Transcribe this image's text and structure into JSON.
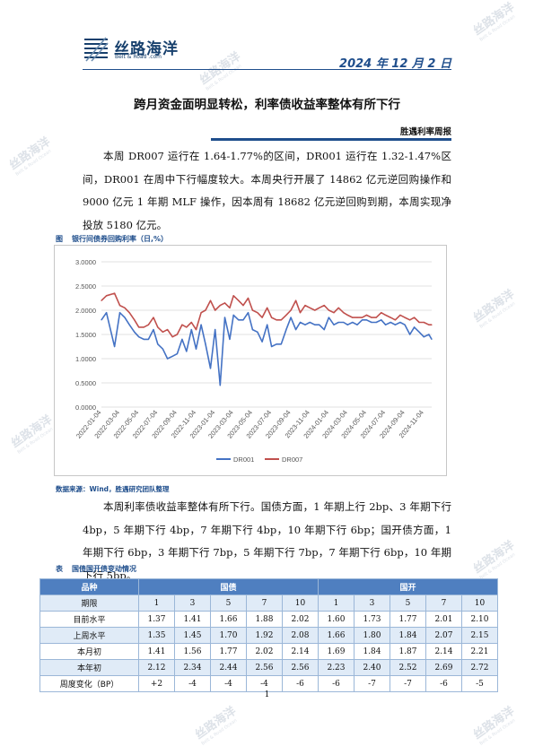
{
  "header": {
    "brand_cn": "丝路海洋",
    "brand_en": "Belt & Road .com",
    "date": "2024 年 12 月 2 日"
  },
  "title": "跨月资金面明显转松，利率债收益率整体有所下行",
  "report_tag": "胜遇利率周报",
  "paragraphs": {
    "p1": "本周 DR007 运行在 1.64-1.77%的区间，DR001 运行在 1.32-1.47%区间，DR001 在周中下行幅度较大。本周央行开展了 14862 亿元逆回购操作和 9000 亿元 1 年期 MLF 操作，因本周有 18682 亿元逆回购到期，本周实现净投放 5180 亿元。",
    "p2": "本周利率债收益率整体有所下行。国债方面，1 年期上行 2bp、3 年期下行 4bp，5 年期下行 4bp，7 年期下行 4bp，10 年期下行 6bp；国开债方面，1 年期下行 6bp，3 年期下行 7bp，5 年期下行 7bp，7 年期下行 6bp，10 年期下行 5bp。"
  },
  "figure": {
    "label": "图",
    "caption": "银行间债券回购利率（日,%）",
    "source": "数据来源：Wind，胜遇研究团队整理"
  },
  "chart_data": {
    "type": "line",
    "x_tick_labels": [
      "2022-01-04",
      "2022-03-04",
      "2022-05-04",
      "2022-07-04",
      "2022-09-04",
      "2022-11-04",
      "2023-01-04",
      "2023-03-04",
      "2023-05-04",
      "2023-07-04",
      "2023-09-04",
      "2023-11-04",
      "2024-01-04",
      "2024-03-04",
      "2024-05-04",
      "2024-07-04",
      "2024-09-04",
      "2024-11-04"
    ],
    "y_tick_labels": [
      "0.0000",
      "0.5000",
      "1.0000",
      "1.5000",
      "2.0000",
      "2.5000",
      "3.0000"
    ],
    "ylim": [
      0,
      3
    ],
    "grid": true,
    "legend": "bottom",
    "x": [
      "2022-01-04",
      "2022-01-20",
      "2022-02-15",
      "2022-03-04",
      "2022-03-20",
      "2022-04-04",
      "2022-04-20",
      "2022-05-04",
      "2022-05-20",
      "2022-06-04",
      "2022-06-20",
      "2022-07-04",
      "2022-07-20",
      "2022-08-04",
      "2022-08-20",
      "2022-09-04",
      "2022-09-20",
      "2022-10-04",
      "2022-10-20",
      "2022-11-04",
      "2022-11-20",
      "2022-12-04",
      "2022-12-20",
      "2023-01-04",
      "2023-01-20",
      "2023-02-04",
      "2023-02-20",
      "2023-03-04",
      "2023-03-20",
      "2023-04-04",
      "2023-04-20",
      "2023-05-04",
      "2023-05-20",
      "2023-06-04",
      "2023-06-20",
      "2023-07-04",
      "2023-07-20",
      "2023-08-04",
      "2023-08-20",
      "2023-09-04",
      "2023-09-20",
      "2023-10-04",
      "2023-10-20",
      "2023-11-04",
      "2023-11-20",
      "2023-12-04",
      "2023-12-20",
      "2024-01-04",
      "2024-01-20",
      "2024-02-04",
      "2024-02-20",
      "2024-03-04",
      "2024-03-20",
      "2024-04-04",
      "2024-04-20",
      "2024-05-04",
      "2024-05-20",
      "2024-06-04",
      "2024-06-20",
      "2024-07-04",
      "2024-07-20",
      "2024-08-04",
      "2024-08-20",
      "2024-09-04",
      "2024-09-20",
      "2024-10-04",
      "2024-10-20",
      "2024-11-04",
      "2024-11-20",
      "2024-11-29"
    ],
    "series": [
      {
        "name": "DR001",
        "color": "#4472c4",
        "values": [
          1.8,
          1.95,
          1.25,
          1.95,
          1.85,
          1.7,
          1.55,
          1.45,
          1.4,
          1.4,
          1.6,
          1.3,
          1.2,
          1.0,
          1.05,
          1.1,
          1.4,
          1.15,
          1.6,
          1.2,
          1.7,
          1.3,
          0.8,
          1.6,
          0.45,
          1.85,
          1.4,
          1.9,
          1.8,
          1.8,
          1.95,
          1.6,
          1.55,
          1.35,
          1.7,
          1.25,
          1.3,
          1.3,
          1.6,
          1.85,
          1.6,
          1.75,
          1.7,
          1.75,
          1.7,
          1.7,
          1.6,
          1.85,
          1.7,
          1.75,
          1.75,
          1.7,
          1.75,
          1.7,
          1.8,
          1.8,
          1.75,
          1.75,
          1.8,
          1.7,
          1.75,
          1.7,
          1.75,
          1.7,
          1.5,
          1.65,
          1.55,
          1.45,
          1.5,
          1.4
        ]
      },
      {
        "name": "DR007",
        "color": "#c0504d",
        "values": [
          2.2,
          2.3,
          2.35,
          2.1,
          2.05,
          1.95,
          1.8,
          1.65,
          1.65,
          1.7,
          1.85,
          1.65,
          1.55,
          1.6,
          1.45,
          1.5,
          1.7,
          1.65,
          1.75,
          1.6,
          1.95,
          2.0,
          2.2,
          2.0,
          2.1,
          2.15,
          2.05,
          2.3,
          2.2,
          2.1,
          2.25,
          2.0,
          1.95,
          1.85,
          2.05,
          1.85,
          1.8,
          1.8,
          1.9,
          2.0,
          2.2,
          1.95,
          2.1,
          2.05,
          2.0,
          2.05,
          2.1,
          2.0,
          1.95,
          2.05,
          1.95,
          1.9,
          1.85,
          1.85,
          1.85,
          1.9,
          1.85,
          1.85,
          1.95,
          1.9,
          1.85,
          1.8,
          1.9,
          1.85,
          1.8,
          1.85,
          1.75,
          1.75,
          1.7,
          1.7
        ]
      }
    ]
  },
  "table": {
    "label": "表",
    "caption": "国债国开债变动情况",
    "col_variety": "品种",
    "group_gov": "国债",
    "group_cdb": "国开",
    "col_term": "期限",
    "terms": [
      "1",
      "3",
      "5",
      "7",
      "10",
      "1",
      "3",
      "5",
      "7",
      "10"
    ],
    "rows": [
      {
        "label": "目前水平",
        "values": [
          "1.37",
          "1.41",
          "1.66",
          "1.88",
          "2.02",
          "1.60",
          "1.73",
          "1.77",
          "2.01",
          "2.10"
        ]
      },
      {
        "label": "上周水平",
        "values": [
          "1.35",
          "1.45",
          "1.70",
          "1.92",
          "2.08",
          "1.66",
          "1.80",
          "1.84",
          "2.07",
          "2.15"
        ]
      },
      {
        "label": "本月初",
        "values": [
          "1.41",
          "1.56",
          "1.77",
          "2.02",
          "2.14",
          "1.69",
          "1.84",
          "1.87",
          "2.14",
          "2.21"
        ]
      },
      {
        "label": "本年初",
        "values": [
          "2.12",
          "2.34",
          "2.44",
          "2.56",
          "2.56",
          "2.23",
          "2.40",
          "2.52",
          "2.69",
          "2.72"
        ]
      },
      {
        "label": "周度变化（BP）",
        "values": [
          "+2",
          "-4",
          "-4",
          "-4",
          "-6",
          "-6",
          "-7",
          "-7",
          "-6",
          "-5"
        ]
      }
    ]
  },
  "page_number": "1",
  "watermark": {
    "cn": "丝路海洋",
    "en": "Belt & Road Ocean"
  }
}
